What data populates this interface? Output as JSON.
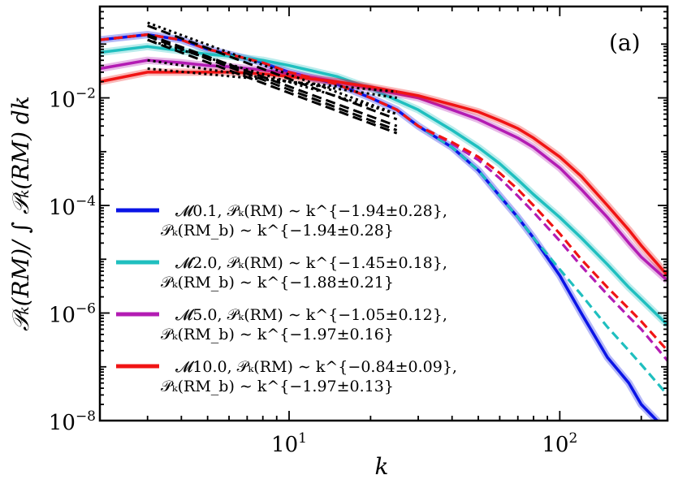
{
  "chart_data": {
    "type": "line",
    "panel_label": "(a)",
    "xlabel": "k",
    "ylabel": "𝒫ₖ(RM)/ ∫ 𝒫ₖ(RM) dk",
    "xscale": "log",
    "yscale": "log",
    "xlim": [
      2,
      250
    ],
    "ylim": [
      1e-08,
      0.5
    ],
    "x_ticks": [
      {
        "value": 10,
        "label": "10",
        "exp": "1"
      },
      {
        "value": 100,
        "label": "10",
        "exp": "2"
      }
    ],
    "y_ticks": [
      {
        "value": 0.01,
        "label": "10",
        "exp": "−2"
      },
      {
        "value": 0.0001,
        "label": "10",
        "exp": "−4"
      },
      {
        "value": 1e-06,
        "label": "10",
        "exp": "−6"
      },
      {
        "value": 1e-08,
        "label": "10",
        "exp": "−8"
      }
    ],
    "legend_position": "lower-left",
    "series": [
      {
        "name": "M0.1",
        "legend_line1": "𝓜0.1, 𝒫ₖ(RM) ∼ k^{−1.94±0.28},",
        "legend_line2": "𝒫ₖ(RM_b) ∼ k^{−1.94±0.28}",
        "color": "#0a14e6",
        "solid": [
          [
            2,
            0.12
          ],
          [
            3,
            0.15
          ],
          [
            4,
            0.12
          ],
          [
            5,
            0.08
          ],
          [
            6,
            0.065
          ],
          [
            8,
            0.045
          ],
          [
            10,
            0.03
          ],
          [
            15,
            0.018
          ],
          [
            20,
            0.01
          ],
          [
            25,
            0.006
          ],
          [
            30,
            0.003
          ],
          [
            40,
            0.0012
          ],
          [
            50,
            0.00045
          ],
          [
            60,
            0.00015
          ],
          [
            70,
            6e-05
          ],
          [
            80,
            2.5e-05
          ],
          [
            100,
            5e-06
          ],
          [
            120,
            1e-06
          ],
          [
            150,
            1.5e-07
          ],
          [
            180,
            5e-08
          ],
          [
            200,
            2e-08
          ],
          [
            230,
            9.7e-09
          ]
        ],
        "dashed": [
          [
            2,
            0.12
          ],
          [
            3,
            0.15
          ],
          [
            4,
            0.12
          ],
          [
            5,
            0.08
          ],
          [
            6,
            0.065
          ],
          [
            8,
            0.045
          ],
          [
            10,
            0.03
          ],
          [
            15,
            0.018
          ],
          [
            20,
            0.01
          ],
          [
            25,
            0.006
          ],
          [
            30,
            0.003
          ],
          [
            40,
            0.0012
          ],
          [
            50,
            0.00045
          ],
          [
            60,
            0.00015
          ],
          [
            70,
            6e-05
          ],
          [
            80,
            2.5e-05
          ],
          [
            100,
            5e-06
          ],
          [
            120,
            1e-06
          ],
          [
            150,
            1.5e-07
          ],
          [
            180,
            5e-08
          ],
          [
            200,
            2e-08
          ],
          [
            230,
            9.7e-09
          ]
        ],
        "fit_solid": [
          [
            3,
            0.25
          ],
          [
            25,
            0.005
          ]
        ],
        "fit_dashed": [
          [
            3,
            0.22
          ],
          [
            25,
            0.004
          ]
        ]
      },
      {
        "name": "M2.0",
        "legend_line1": "𝓜2.0, 𝒫ₖ(RM) ∼ k^{−1.45±0.18},",
        "legend_line2": "𝒫ₖ(RM_b) ∼ k^{−1.88±0.21}",
        "color": "#1fbfbf",
        "solid": [
          [
            2,
            0.07
          ],
          [
            3,
            0.09
          ],
          [
            4,
            0.075
          ],
          [
            5,
            0.065
          ],
          [
            6,
            0.06
          ],
          [
            8,
            0.05
          ],
          [
            10,
            0.04
          ],
          [
            15,
            0.025
          ],
          [
            20,
            0.015
          ],
          [
            30,
            0.006
          ],
          [
            40,
            0.0025
          ],
          [
            50,
            0.0012
          ],
          [
            60,
            0.0006
          ],
          [
            70,
            0.0003
          ],
          [
            80,
            0.00016
          ],
          [
            100,
            6e-05
          ],
          [
            120,
            2.5e-05
          ],
          [
            150,
            8e-06
          ],
          [
            180,
            3e-06
          ],
          [
            200,
            1.8e-06
          ],
          [
            250,
            6e-07
          ]
        ],
        "dashed": [
          [
            2,
            0.12
          ],
          [
            3,
            0.15
          ],
          [
            4,
            0.12
          ],
          [
            5,
            0.08
          ],
          [
            6,
            0.065
          ],
          [
            8,
            0.045
          ],
          [
            10,
            0.03
          ],
          [
            15,
            0.018
          ],
          [
            20,
            0.01
          ],
          [
            25,
            0.006
          ],
          [
            30,
            0.003
          ],
          [
            40,
            0.0012
          ],
          [
            50,
            0.00045
          ],
          [
            60,
            0.00015
          ],
          [
            70,
            6e-05
          ],
          [
            80,
            2.5e-05
          ],
          [
            100,
            6.5e-06
          ],
          [
            120,
            2.2e-06
          ],
          [
            150,
            5.5e-07
          ],
          [
            180,
            2e-07
          ],
          [
            200,
            1.1e-07
          ],
          [
            250,
            3e-08
          ]
        ],
        "fit_solid": [
          [
            3,
            0.12
          ],
          [
            25,
            0.005
          ]
        ],
        "fit_dashed": [
          [
            3,
            0.15
          ],
          [
            25,
            0.003
          ]
        ]
      },
      {
        "name": "M5.0",
        "legend_line1": "𝓜5.0, 𝒫ₖ(RM) ∼ k^{−1.05±0.12},",
        "legend_line2": "𝒫ₖ(RM_b) ∼ k^{−1.97±0.16}",
        "color": "#b31cb3",
        "solid": [
          [
            2,
            0.035
          ],
          [
            3,
            0.05
          ],
          [
            4,
            0.045
          ],
          [
            5,
            0.04
          ],
          [
            6,
            0.038
          ],
          [
            8,
            0.033
          ],
          [
            10,
            0.028
          ],
          [
            15,
            0.02
          ],
          [
            20,
            0.015
          ],
          [
            30,
            0.01
          ],
          [
            40,
            0.006
          ],
          [
            50,
            0.004
          ],
          [
            60,
            0.0026
          ],
          [
            70,
            0.0018
          ],
          [
            80,
            0.0012
          ],
          [
            100,
            0.0005
          ],
          [
            120,
            0.0002
          ],
          [
            150,
            6e-05
          ],
          [
            180,
            2e-05
          ],
          [
            200,
            1.1e-05
          ],
          [
            250,
            4e-06
          ]
        ],
        "dashed": [
          [
            2,
            0.12
          ],
          [
            3,
            0.15
          ],
          [
            4,
            0.12
          ],
          [
            5,
            0.08
          ],
          [
            6,
            0.065
          ],
          [
            8,
            0.045
          ],
          [
            10,
            0.03
          ],
          [
            15,
            0.018
          ],
          [
            20,
            0.01
          ],
          [
            25,
            0.006
          ],
          [
            30,
            0.003
          ],
          [
            40,
            0.0014
          ],
          [
            50,
            0.0007
          ],
          [
            60,
            0.00032
          ],
          [
            70,
            0.00015
          ],
          [
            80,
            7.5e-05
          ],
          [
            100,
            2.2e-05
          ],
          [
            120,
            7.5e-06
          ],
          [
            150,
            2.2e-06
          ],
          [
            180,
            8.5e-07
          ],
          [
            200,
            5e-07
          ],
          [
            250,
            1.3e-07
          ]
        ],
        "fit_solid": [
          [
            3,
            0.05
          ],
          [
            25,
            0.01
          ]
        ],
        "fit_dashed": [
          [
            3,
            0.14
          ],
          [
            25,
            0.0025
          ]
        ]
      },
      {
        "name": "M10.0",
        "legend_line1": "𝓜10.0, 𝒫ₖ(RM) ∼ k^{−0.84±0.09},",
        "legend_line2": "𝒫ₖ(RM_b) ∼ k^{−1.97±0.13}",
        "color": "#f01414",
        "solid": [
          [
            2,
            0.02
          ],
          [
            3,
            0.03
          ],
          [
            4,
            0.03
          ],
          [
            5,
            0.03
          ],
          [
            6,
            0.03
          ],
          [
            8,
            0.028
          ],
          [
            10,
            0.025
          ],
          [
            15,
            0.02
          ],
          [
            20,
            0.016
          ],
          [
            30,
            0.011
          ],
          [
            40,
            0.0075
          ],
          [
            50,
            0.0055
          ],
          [
            60,
            0.0038
          ],
          [
            70,
            0.0027
          ],
          [
            80,
            0.0018
          ],
          [
            100,
            0.0008
          ],
          [
            120,
            0.00035
          ],
          [
            150,
            0.0001
          ],
          [
            180,
            3.5e-05
          ],
          [
            200,
            1.8e-05
          ],
          [
            250,
            5e-06
          ]
        ],
        "dashed": [
          [
            2,
            0.12
          ],
          [
            3,
            0.15
          ],
          [
            4,
            0.12
          ],
          [
            5,
            0.08
          ],
          [
            6,
            0.065
          ],
          [
            8,
            0.045
          ],
          [
            10,
            0.03
          ],
          [
            15,
            0.018
          ],
          [
            20,
            0.01
          ],
          [
            25,
            0.006
          ],
          [
            30,
            0.003
          ],
          [
            40,
            0.0015
          ],
          [
            50,
            0.0008
          ],
          [
            60,
            0.0004
          ],
          [
            70,
            0.0002
          ],
          [
            80,
            0.0001
          ],
          [
            100,
            3e-05
          ],
          [
            120,
            1e-05
          ],
          [
            150,
            3e-06
          ],
          [
            180,
            1.2e-06
          ],
          [
            200,
            7e-07
          ],
          [
            250,
            2e-07
          ]
        ],
        "fit_solid": [
          [
            3,
            0.035
          ],
          [
            25,
            0.013
          ]
        ],
        "fit_dashed": [
          [
            3,
            0.12
          ],
          [
            25,
            0.0022
          ]
        ]
      }
    ]
  }
}
